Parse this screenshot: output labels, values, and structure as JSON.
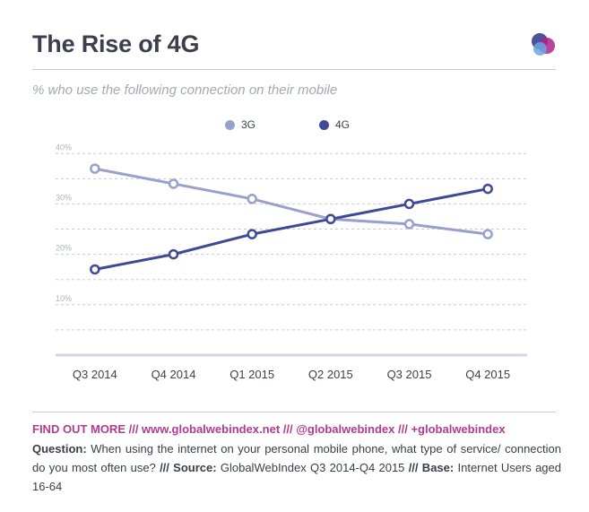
{
  "header": {
    "title": "The Rise of 4G",
    "subtitle": "% who use the following connection on their mobile"
  },
  "colors": {
    "s3g": "#99a0cd",
    "s4g": "#3f4a96",
    "grid": "#c9cbd3",
    "axis": "#d4d6e6",
    "links": "#b23a8f"
  },
  "logo_icon": "globalwebindex-logo-icon",
  "chart_data": {
    "type": "line",
    "categories": [
      "Q3 2014",
      "Q4 2014",
      "Q1 2015",
      "Q2 2015",
      "Q3 2015",
      "Q4 2015"
    ],
    "series": [
      {
        "name": "3G",
        "values": [
          37,
          34,
          31,
          27,
          26,
          24
        ]
      },
      {
        "name": "4G",
        "values": [
          17,
          20,
          24,
          27,
          30,
          33
        ]
      }
    ],
    "y_ticks": [
      {
        "value": 40,
        "label": "40%"
      },
      {
        "value": 30,
        "label": "30%"
      },
      {
        "value": 20,
        "label": "20%"
      },
      {
        "value": 10,
        "label": "10%"
      }
    ],
    "ylim": [
      0,
      42
    ],
    "grid": true,
    "legend_position": "top-center"
  },
  "footer": {
    "links": "FIND OUT MORE  ///  www.globalwebindex.net  ///  @globalwebindex  ///  +globalwebindex",
    "question_label": "Question:",
    "question_text": " When using the internet on your personal mobile phone, what type of service/ connection do you most often use? ",
    "sep1": "///",
    "source_label": " Source:",
    "source_text": " GlobalWebIndex Q3 2014-Q4 2015 ",
    "sep2": "///",
    "base_label": " Base:",
    "base_text": " Internet Users aged 16-64"
  }
}
